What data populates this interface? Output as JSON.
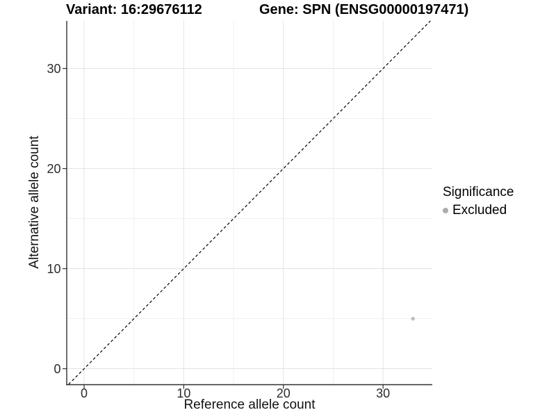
{
  "page": {
    "background": "#ffffff"
  },
  "chart_data": {
    "type": "scatter",
    "titles": {
      "left": "Variant: 16:29676112",
      "right": "Gene: SPN (ENSG00000197471)"
    },
    "xlabel": "Reference allele count",
    "ylabel": "Alternative allele count",
    "xlim": [
      -1.71,
      34.94
    ],
    "ylim": [
      -1.56,
      34.76
    ],
    "xticks": [
      0,
      10,
      20,
      30
    ],
    "yticks": [
      0,
      10,
      20,
      30
    ],
    "minor_ticks_x": [
      5,
      15,
      25
    ],
    "minor_ticks_y": [
      5,
      15,
      25
    ],
    "grid": "on",
    "identity_line": {
      "type": "dashed",
      "equation": "y = x",
      "color": "#000000"
    },
    "series": [
      {
        "name": "Excluded",
        "color": "#bdbdbd",
        "points": [
          [
            33,
            5
          ]
        ]
      }
    ],
    "legend": {
      "title": "Significance",
      "position": "right",
      "items": [
        {
          "label": "Excluded",
          "color": "#acacac",
          "marker": "circle"
        }
      ]
    },
    "colors": {
      "axis_line": "#2f2f2f",
      "tick": "#2f2f2f",
      "tick_label": "#2b2b2b",
      "grid_major": "#e3e3e3",
      "grid_minor": "#f0f0f0",
      "title": "#000000"
    }
  }
}
